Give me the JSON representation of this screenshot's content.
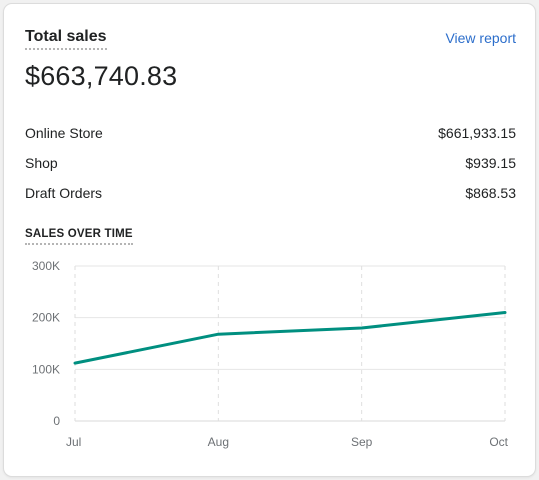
{
  "card": {
    "title": "Total sales",
    "view_report": "View report",
    "total": "$663,740.83",
    "breakdown": [
      {
        "label": "Online Store",
        "value": "$661,933.15"
      },
      {
        "label": "Shop",
        "value": "$939.15"
      },
      {
        "label": "Draft Orders",
        "value": "$868.53"
      }
    ],
    "section_title": "SALES OVER TIME"
  },
  "colors": {
    "accent_line": "#008f80",
    "link": "#2c6ecb"
  },
  "chart_data": {
    "type": "line",
    "categories": [
      "Jul",
      "Aug",
      "Sep",
      "Oct"
    ],
    "series": [
      {
        "values": [
          112000,
          168000,
          180000,
          210000
        ]
      }
    ],
    "ylim": [
      0,
      300000
    ],
    "yticks": [
      0,
      100000,
      200000,
      300000
    ],
    "ytick_labels": [
      "0",
      "100K",
      "200K",
      "300K"
    ],
    "grid": true
  }
}
